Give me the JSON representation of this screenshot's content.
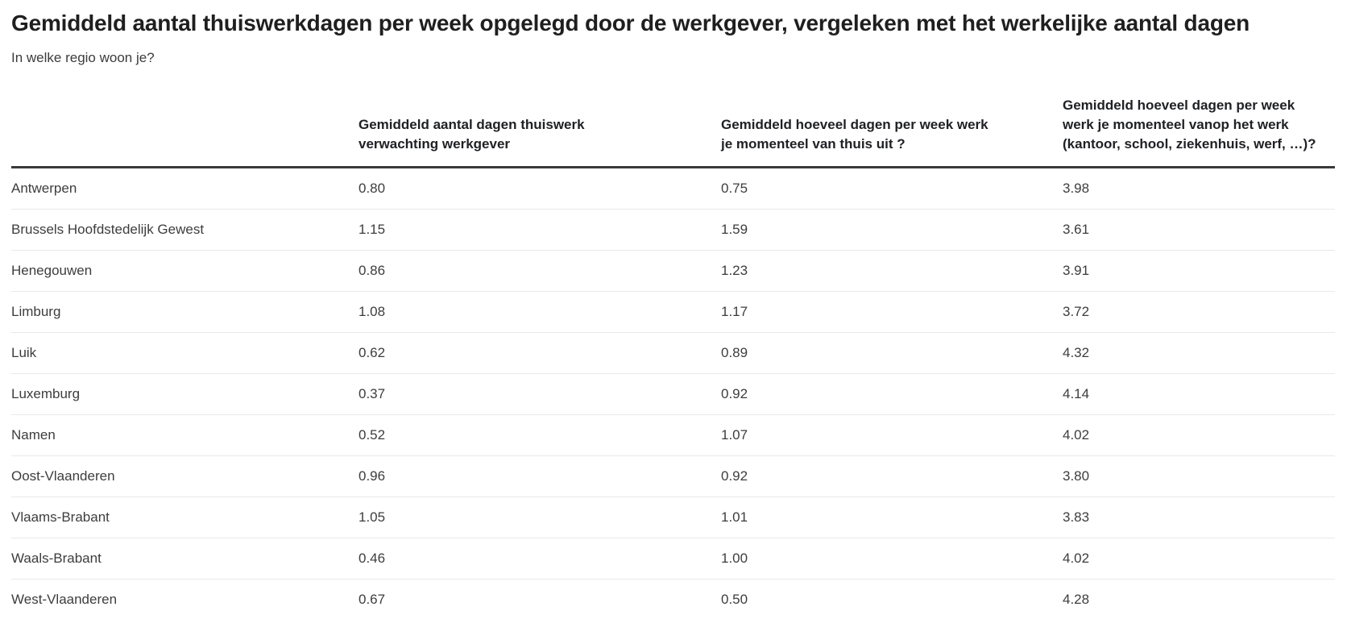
{
  "header": {
    "title": "Gemiddeld aantal thuiswerkdagen per week opgelegd door de werkgever, vergeleken met het werkelijke aantal dagen",
    "subtitle": "In welke regio woon je?"
  },
  "chart_data": {
    "type": "table",
    "columns": [
      "",
      "Gemiddeld aantal dagen thuiswerk verwachting werkgever",
      "Gemiddeld hoeveel dagen per week werk je momenteel van thuis uit ?",
      "Gemiddeld hoeveel dagen per week werk je momenteel vanop het werk (kantoor, school, ziekenhuis, werf, …)?"
    ],
    "rows": [
      {
        "region": "Antwerpen",
        "values": [
          "0.80",
          "0.75",
          "3.98"
        ]
      },
      {
        "region": "Brussels Hoofdstedelijk Gewest",
        "values": [
          "1.15",
          "1.59",
          "3.61"
        ]
      },
      {
        "region": "Henegouwen",
        "values": [
          "0.86",
          "1.23",
          "3.91"
        ]
      },
      {
        "region": "Limburg",
        "values": [
          "1.08",
          "1.17",
          "3.72"
        ]
      },
      {
        "region": "Luik",
        "values": [
          "0.62",
          "0.89",
          "4.32"
        ]
      },
      {
        "region": "Luxemburg",
        "values": [
          "0.37",
          "0.92",
          "4.14"
        ]
      },
      {
        "region": "Namen",
        "values": [
          "0.52",
          "1.07",
          "4.02"
        ]
      },
      {
        "region": "Oost-Vlaanderen",
        "values": [
          "0.96",
          "0.92",
          "3.80"
        ]
      },
      {
        "region": "Vlaams-Brabant",
        "values": [
          "1.05",
          "1.01",
          "3.83"
        ]
      },
      {
        "region": "Waals-Brabant",
        "values": [
          "0.46",
          "1.00",
          "4.02"
        ]
      },
      {
        "region": "West-Vlaanderen",
        "values": [
          "0.67",
          "0.50",
          "4.28"
        ]
      }
    ]
  },
  "colors": {
    "title_text": "#1f1f1f",
    "body_text": "#3d3d3d",
    "header_rule": "#3a3a3a",
    "row_divider": "#e9e9e9",
    "background": "#ffffff"
  }
}
